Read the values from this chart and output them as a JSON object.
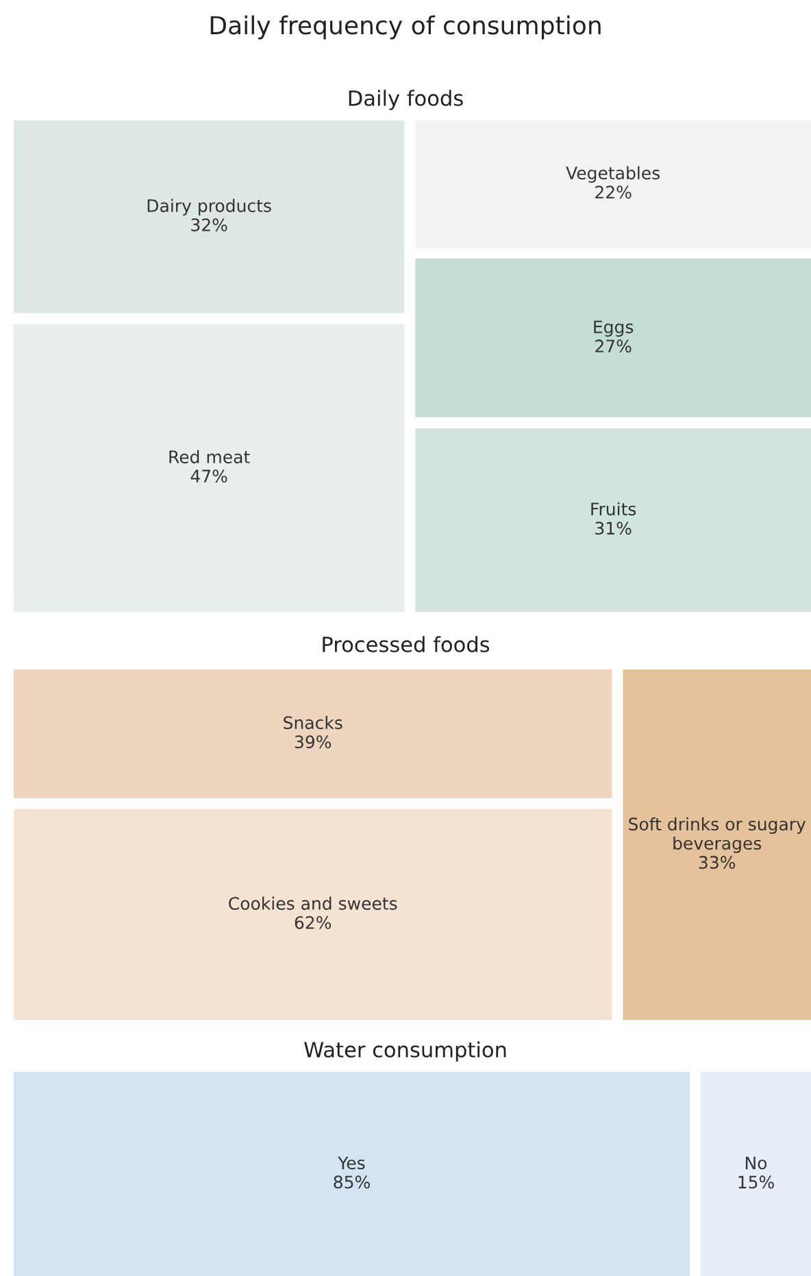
{
  "chart_data": [
    {
      "type": "other",
      "title": "Daily frequency of consumption",
      "subtitle": "Daily foods",
      "categories": [
        "Dairy products",
        "Red meat",
        "Vegetables",
        "Eggs",
        "Fruits"
      ],
      "values": [
        32,
        47,
        22,
        27,
        31
      ],
      "value_labels": [
        "32%",
        "47%",
        "22%",
        "27%",
        "31%"
      ],
      "colors": [
        "#dde8e4",
        "#e8efed",
        "#f1f3f2",
        "#c5ddd7",
        "#d1e4df"
      ]
    },
    {
      "type": "other",
      "subtitle": "Processed foods",
      "categories": [
        "Snacks",
        "Cookies and sweets",
        "Soft drinks or sugary beverages"
      ],
      "values": [
        39,
        62,
        33
      ],
      "value_labels": [
        "39%",
        "62%",
        "33%"
      ],
      "colors": [
        "#eed5bf",
        "#f4e3d3",
        "#e6c29c"
      ]
    },
    {
      "type": "other",
      "subtitle": "Water consumption",
      "categories": [
        "Yes",
        "No"
      ],
      "values": [
        85,
        15
      ],
      "value_labels": [
        "85%",
        "15%"
      ],
      "colors": [
        "#d4e4f3",
        "#e6eef8"
      ]
    }
  ]
}
